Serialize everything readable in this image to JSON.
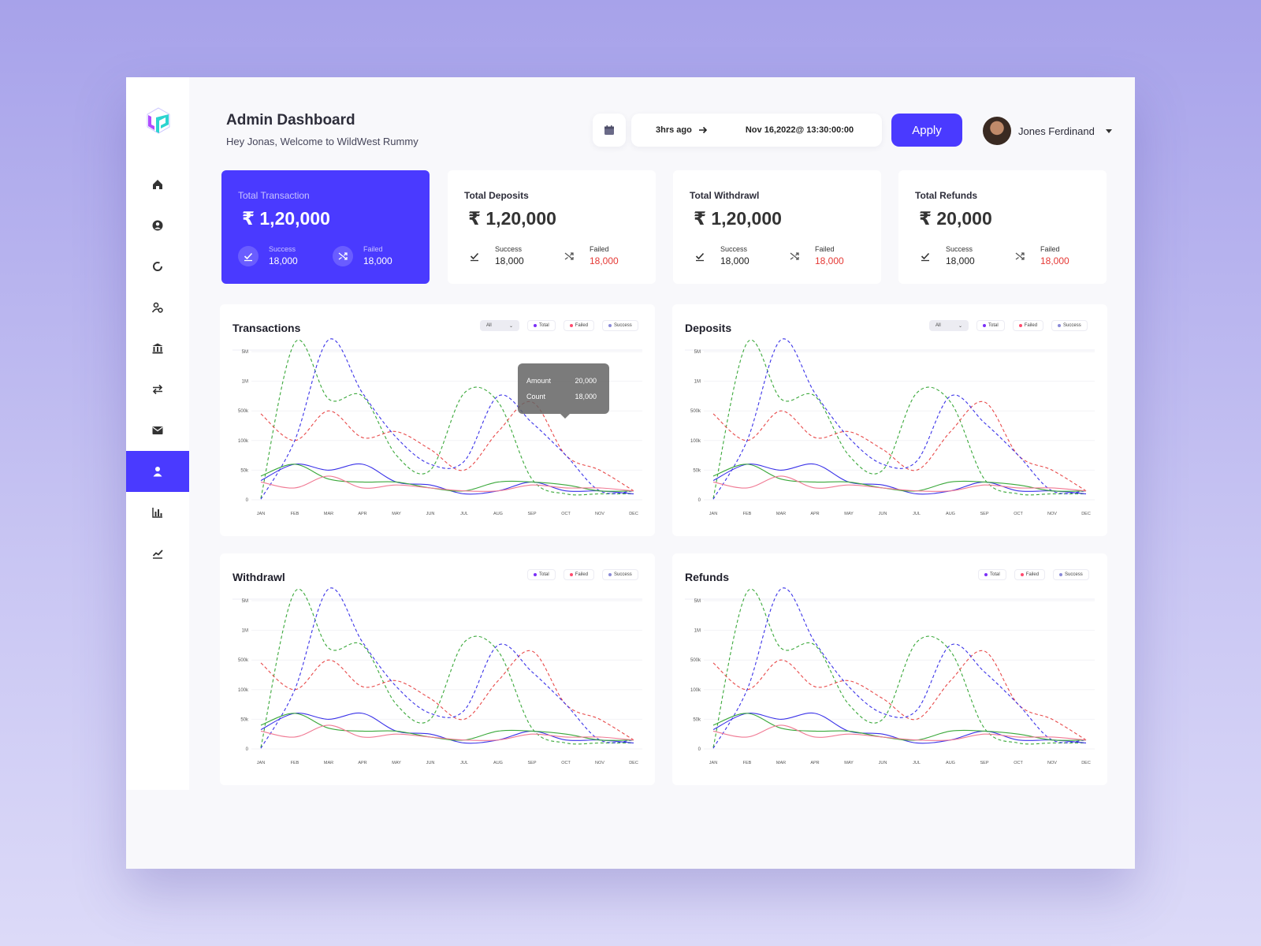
{
  "header": {
    "title": "Admin Dashboard",
    "subtitle": "Hey Jonas, Welcome to WildWest Rummy",
    "date_from": "3hrs ago",
    "date_to": "Nov 16,2022@ 13:30:00:00",
    "apply_label": "Apply",
    "user_name": "Jones Ferdinand"
  },
  "sidebar": {
    "items": [
      "home-icon",
      "user-circle-icon",
      "refresh-icon",
      "user-settings-icon",
      "bank-icon",
      "transfer-icon",
      "mail-icon",
      "agent-icon",
      "bar-chart-icon",
      "trend-icon"
    ],
    "active_index": 7
  },
  "cards": [
    {
      "title": "Total Transaction",
      "amount": "₹ 1,20,000",
      "success_label": "Success",
      "success_value": "18,000",
      "failed_label": "Failed",
      "failed_value": "18,000"
    },
    {
      "title": "Total Deposits",
      "amount": "₹ 1,20,000",
      "success_label": "Success",
      "success_value": "18,000",
      "failed_label": "Failed",
      "failed_value": "18,000"
    },
    {
      "title": "Total Withdrawl",
      "amount": "₹ 1,20,000",
      "success_label": "Success",
      "success_value": "18,000",
      "failed_label": "Failed",
      "failed_value": "18,000"
    },
    {
      "title": "Total Refunds",
      "amount": "₹ 20,000",
      "success_label": "Success",
      "success_value": "18,000",
      "failed_label": "Failed",
      "failed_value": "18,000"
    }
  ],
  "legend": {
    "select_value": "All",
    "total": "Total",
    "failed": "Failed",
    "success": "Success"
  },
  "tooltip": {
    "amount_label": "Amount",
    "amount_value": "20,000",
    "count_label": "Count",
    "count_value": "18,000"
  },
  "colors": {
    "accent": "#4a3aff",
    "green": "#3aa83a",
    "red": "#e84a4a",
    "blue": "#3a32e8",
    "pink": "#f07a94",
    "total_dot": "#7b2ff7",
    "failed_dot": "#ff4b6e",
    "success_dot": "#8a8ad8"
  },
  "chart_data": [
    {
      "type": "line",
      "title": "Transactions",
      "x": [
        "JAN",
        "FEB",
        "MAR",
        "APR",
        "MAY",
        "JUN",
        "JUL",
        "AUG",
        "SEP",
        "OCT",
        "NOV",
        "DEC"
      ],
      "y_ticks": [
        "0",
        "50k",
        "100k",
        "500k",
        "1M",
        "5M"
      ],
      "y_scale": "categorical-log",
      "series": [
        {
          "name": "Total",
          "style": "dashed",
          "color": "#3aa83a",
          "values": [
            0.05,
            5.3,
            3.4,
            3.5,
            1.5,
            1.0,
            3.6,
            3.3,
            0.7,
            0.2,
            0.2,
            0.2
          ]
        },
        {
          "name": "Failed",
          "style": "dashed",
          "color": "#e84a4a",
          "values": [
            2.9,
            2.0,
            3.0,
            2.1,
            2.3,
            1.7,
            1.0,
            2.3,
            3.3,
            1.5,
            1.0,
            0.3
          ]
        },
        {
          "name": "Success",
          "style": "dashed",
          "color": "#3a32e8",
          "values": [
            0.02,
            2.0,
            5.4,
            3.6,
            2.1,
            1.2,
            1.3,
            3.5,
            2.6,
            1.5,
            0.3,
            0.3
          ]
        },
        {
          "name": "Total",
          "style": "solid",
          "color": "#3a32e8",
          "values": [
            0.65,
            1.2,
            1.0,
            1.2,
            0.6,
            0.5,
            0.2,
            0.3,
            0.6,
            0.3,
            0.3,
            0.2
          ]
        },
        {
          "name": "Success",
          "style": "solid",
          "color": "#3aa83a",
          "values": [
            0.8,
            1.2,
            0.7,
            0.6,
            0.6,
            0.4,
            0.3,
            0.6,
            0.6,
            0.5,
            0.3,
            0.3
          ]
        },
        {
          "name": "Failed",
          "style": "solid",
          "color": "#f07a94",
          "values": [
            0.6,
            0.4,
            0.8,
            0.4,
            0.5,
            0.4,
            0.3,
            0.3,
            0.5,
            0.4,
            0.4,
            0.3
          ]
        }
      ]
    },
    {
      "type": "line",
      "title": "Deposits",
      "x": [
        "JAN",
        "FEB",
        "MAR",
        "APR",
        "MAY",
        "JUN",
        "JUL",
        "AUG",
        "SEP",
        "OCT",
        "NOV",
        "DEC"
      ],
      "y_ticks": [
        "0",
        "50k",
        "100k",
        "500k",
        "1M",
        "5M"
      ],
      "y_scale": "categorical-log",
      "series": [
        {
          "name": "Total",
          "style": "dashed",
          "color": "#3aa83a",
          "values": [
            0.05,
            5.3,
            3.4,
            3.5,
            1.5,
            1.0,
            3.6,
            3.3,
            0.7,
            0.2,
            0.2,
            0.2
          ]
        },
        {
          "name": "Failed",
          "style": "dashed",
          "color": "#e84a4a",
          "values": [
            2.9,
            2.0,
            3.0,
            2.1,
            2.3,
            1.7,
            1.0,
            2.3,
            3.3,
            1.5,
            1.0,
            0.3
          ]
        },
        {
          "name": "Success",
          "style": "dashed",
          "color": "#3a32e8",
          "values": [
            0.02,
            2.0,
            5.4,
            3.6,
            2.1,
            1.2,
            1.3,
            3.5,
            2.6,
            1.5,
            0.3,
            0.3
          ]
        }
      ]
    },
    {
      "type": "line",
      "title": "Withdrawl",
      "x": [
        "JAN",
        "FEB",
        "MAR",
        "APR",
        "MAY",
        "JUN",
        "JUL",
        "AUG",
        "SEP",
        "OCT",
        "NOV",
        "DEC"
      ],
      "y_ticks": [
        "0",
        "50k",
        "100k",
        "500k",
        "1M",
        "5M"
      ],
      "y_scale": "categorical-log",
      "series": [
        {
          "name": "Total",
          "style": "dashed",
          "color": "#3aa83a",
          "values": [
            0.05,
            5.3,
            3.4,
            3.5,
            1.5,
            1.0,
            3.6,
            3.3,
            0.7,
            0.2,
            0.2,
            0.2
          ]
        },
        {
          "name": "Failed",
          "style": "dashed",
          "color": "#e84a4a",
          "values": [
            2.9,
            2.0,
            3.0,
            2.1,
            2.3,
            1.7,
            1.0,
            2.3,
            3.3,
            1.5,
            1.0,
            0.3
          ]
        },
        {
          "name": "Success",
          "style": "dashed",
          "color": "#3a32e8",
          "values": [
            0.02,
            2.0,
            5.4,
            3.6,
            2.1,
            1.2,
            1.3,
            3.5,
            2.6,
            1.5,
            0.3,
            0.3
          ]
        }
      ]
    },
    {
      "type": "line",
      "title": "Refunds",
      "x": [
        "JAN",
        "FEB",
        "MAR",
        "APR",
        "MAY",
        "JUN",
        "JUL",
        "AUG",
        "SEP",
        "OCT",
        "NOV",
        "DEC"
      ],
      "y_ticks": [
        "0",
        "50k",
        "100k",
        "500k",
        "1M",
        "5M"
      ],
      "y_scale": "categorical-log",
      "series": [
        {
          "name": "Total",
          "style": "dashed",
          "color": "#3aa83a",
          "values": [
            0.05,
            5.3,
            3.4,
            3.5,
            1.5,
            1.0,
            3.6,
            3.3,
            0.7,
            0.2,
            0.2,
            0.2
          ]
        },
        {
          "name": "Failed",
          "style": "dashed",
          "color": "#e84a4a",
          "values": [
            2.9,
            2.0,
            3.0,
            2.1,
            2.3,
            1.7,
            1.0,
            2.3,
            3.3,
            1.5,
            1.0,
            0.3
          ]
        },
        {
          "name": "Success",
          "style": "dashed",
          "color": "#3a32e8",
          "values": [
            0.02,
            2.0,
            5.4,
            3.6,
            2.1,
            1.2,
            1.3,
            3.5,
            2.6,
            1.5,
            0.3,
            0.3
          ]
        }
      ]
    }
  ]
}
